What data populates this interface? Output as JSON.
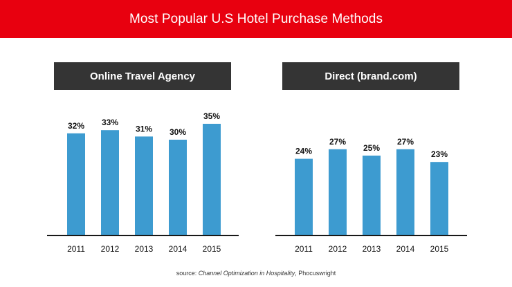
{
  "header": {
    "title": "Most Popular U.S Hotel Purchase Methods",
    "banner_color": "#e8000f"
  },
  "source": {
    "prefix": "source: ",
    "work": "Channel Optimization in Hospitality",
    "suffix": ", Phocuswright"
  },
  "chart_data": [
    {
      "type": "bar",
      "title": "Online Travel Agency",
      "categories": [
        "2011",
        "2012",
        "2013",
        "2014",
        "2015"
      ],
      "values": [
        32,
        33,
        31,
        30,
        35
      ],
      "data_labels": [
        "32%",
        "33%",
        "31%",
        "30%",
        "35%"
      ],
      "ylim": [
        0,
        35
      ],
      "xlabel": "",
      "ylabel": "",
      "grid": false,
      "bar_color": "#3d9bd0"
    },
    {
      "type": "bar",
      "title": "Direct (brand.com)",
      "categories": [
        "2011",
        "2012",
        "2013",
        "2014",
        "2015"
      ],
      "values": [
        24,
        27,
        25,
        27,
        23
      ],
      "data_labels": [
        "24%",
        "27%",
        "25%",
        "27%",
        "23%"
      ],
      "ylim": [
        0,
        35
      ],
      "xlabel": "",
      "ylabel": "",
      "grid": false,
      "bar_color": "#3d9bd0"
    }
  ]
}
